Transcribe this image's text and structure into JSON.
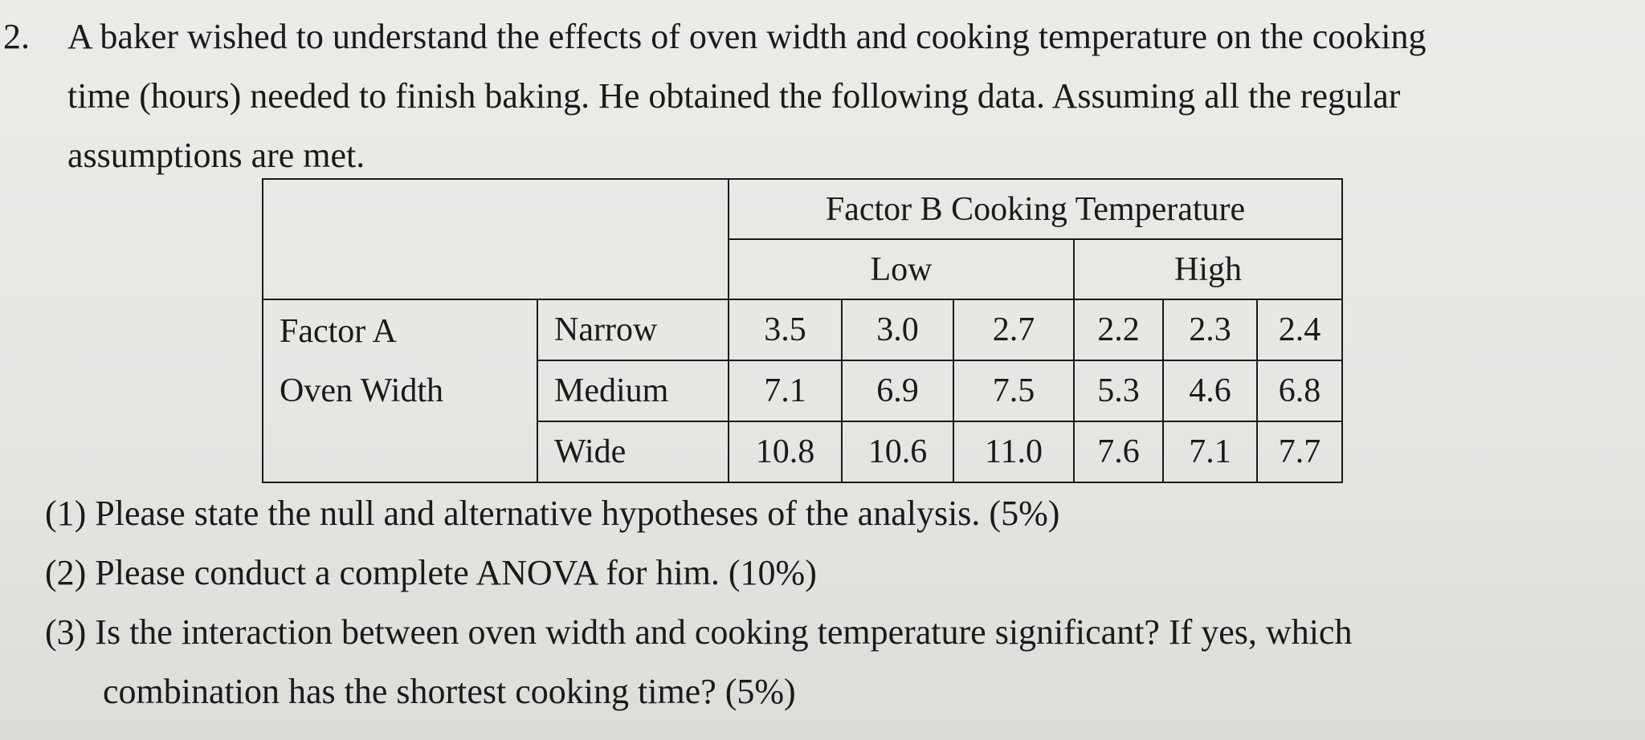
{
  "question": {
    "number": "2.",
    "stem_lines": [
      "A baker wished to understand the effects of oven width and cooking temperature on the cooking",
      "time (hours) needed to finish baking. He obtained the following data. Assuming all the regular",
      "assumptions are met."
    ]
  },
  "table": {
    "factor_b_label": "Factor B Cooking Temperature",
    "levels_b": [
      "Low",
      "High"
    ],
    "factor_a_label_line1": "Factor A",
    "factor_a_label_line2": "Oven Width",
    "rows": [
      {
        "level": "Narrow",
        "values": [
          "3.5",
          "3.0",
          "2.7",
          "2.2",
          "2.3",
          "2.4"
        ]
      },
      {
        "level": "Medium",
        "values": [
          "7.1",
          "6.9",
          "7.5",
          "5.3",
          "4.6",
          "6.8"
        ]
      },
      {
        "level": "Wide",
        "values": [
          "10.8",
          "10.6",
          "11.0",
          "7.6",
          "7.1",
          "7.7"
        ]
      }
    ]
  },
  "sub_questions": [
    "(1) Please state the null and alternative hypotheses of the analysis. (5%)",
    "(2) Please conduct a complete ANOVA for him. (10%)",
    "(3) Is the interaction between oven width and cooking temperature significant? If yes, which",
    "combination has the shortest cooking time? (5%)"
  ]
}
